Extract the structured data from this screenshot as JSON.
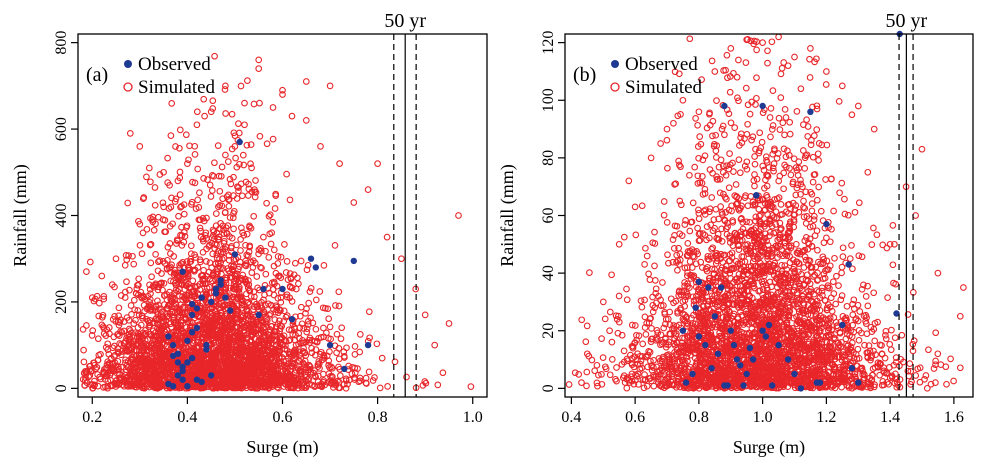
{
  "chart_data": [
    {
      "type": "scatter",
      "panel_label": "(a)",
      "xlabel": "Surge (m)",
      "ylabel": "Rainfall (mm)",
      "xlim": [
        0.17,
        1.03
      ],
      "ylim": [
        -20,
        820
      ],
      "xticks": [
        0.2,
        0.4,
        0.6,
        0.8,
        1.0
      ],
      "xtick_labels": [
        "0.2",
        "0.4",
        "0.6",
        "0.8",
        "1.0"
      ],
      "yticks": [
        0,
        200,
        400,
        600,
        800
      ],
      "ytick_labels": [
        "0",
        "200",
        "400",
        "600",
        "800"
      ],
      "legend": {
        "position": "top-left",
        "entries": [
          "Observed",
          "Simulated"
        ]
      },
      "return_period": {
        "label": "50 yr",
        "x": 0.858,
        "x_lower": 0.834,
        "x_upper": 0.881
      },
      "colors": {
        "observed": "#1f3a93",
        "simulated": "#e8262a"
      },
      "simulated_summary": {
        "x_mode": 0.45,
        "x_sd": 0.11,
        "y_median": 140,
        "y_max": 770,
        "approx_count": 9000
      },
      "series": [
        {
          "name": "Observed",
          "x": [
            0.36,
            0.37,
            0.38,
            0.38,
            0.39,
            0.39,
            0.4,
            0.4,
            0.41,
            0.41,
            0.42,
            0.43,
            0.44,
            0.45,
            0.46,
            0.47,
            0.48,
            0.49,
            0.5,
            0.36,
            0.37,
            0.38,
            0.39,
            0.4,
            0.41,
            0.42,
            0.43,
            0.44,
            0.45,
            0.46,
            0.47,
            0.55,
            0.56,
            0.6,
            0.62,
            0.66,
            0.67,
            0.7,
            0.75,
            0.73,
            0.78,
            0.51,
            0.39,
            0.41,
            0.42,
            0.37
          ],
          "y": [
            120,
            100,
            80,
            60,
            40,
            20,
            5,
            110,
            130,
            170,
            140,
            210,
            90,
            30,
            230,
            250,
            210,
            180,
            310,
            10,
            5,
            30,
            50,
            60,
            70,
            20,
            15,
            100,
            200,
            220,
            240,
            170,
            230,
            230,
            160,
            300,
            280,
            100,
            295,
            45,
            100,
            570,
            270,
            195,
            185,
            75
          ]
        },
        {
          "name": "Simulated",
          "x": [
            0.28,
            0.3,
            0.32,
            0.35,
            0.38,
            0.4,
            0.42,
            0.45,
            0.48,
            0.5,
            0.52,
            0.55,
            0.58,
            0.6,
            0.62,
            0.65,
            0.68,
            0.7,
            0.72,
            0.75,
            0.78,
            0.8,
            0.82,
            0.85,
            0.88,
            0.9,
            0.92,
            0.95,
            0.97,
            0.55,
            0.52,
            0.6,
            0.48,
            0.65,
            0.35,
            0.3,
            0.25,
            0.22,
            0.2
          ],
          "y": [
            590,
            560,
            510,
            500,
            480,
            520,
            610,
            640,
            700,
            560,
            660,
            760,
            650,
            690,
            630,
            710,
            560,
            700,
            520,
            430,
            460,
            520,
            350,
            300,
            230,
            170,
            100,
            150,
            400,
            740,
            610,
            680,
            540,
            620,
            420,
            380,
            300,
            260,
            210
          ]
        }
      ]
    },
    {
      "type": "scatter",
      "panel_label": "(b)",
      "xlabel": "Surge (m)",
      "ylabel": "Rainfall (mm)",
      "xlim": [
        0.38,
        1.66
      ],
      "ylim": [
        -3,
        123
      ],
      "xticks": [
        0.4,
        0.6,
        0.8,
        1.0,
        1.2,
        1.4,
        1.6
      ],
      "xtick_labels": [
        "0.4",
        "0.6",
        "0.8",
        "1.0",
        "1.2",
        "1.4",
        "1.6"
      ],
      "yticks": [
        0,
        20,
        40,
        60,
        80,
        100,
        120
      ],
      "ytick_labels": [
        "0",
        "20",
        "40",
        "60",
        "80",
        "100",
        "120"
      ],
      "legend": {
        "position": "top-left",
        "entries": [
          "Observed",
          "Simulated"
        ]
      },
      "return_period": {
        "label": "50 yr",
        "x": 1.451,
        "x_lower": 1.428,
        "x_upper": 1.472
      },
      "colors": {
        "observed": "#1f3a93",
        "simulated": "#e8262a"
      },
      "simulated_summary": {
        "x_mode": 0.98,
        "x_sd": 0.17,
        "y_median": 30,
        "y_max": 123,
        "approx_count": 9000
      },
      "series": [
        {
          "name": "Observed",
          "x": [
            0.75,
            0.78,
            0.8,
            0.82,
            0.85,
            0.88,
            0.9,
            0.92,
            0.95,
            0.98,
            1.0,
            1.02,
            1.05,
            1.08,
            1.1,
            1.15,
            1.18,
            1.2,
            1.25,
            1.27,
            1.28,
            1.3,
            1.42,
            0.8,
            0.83,
            0.86,
            0.89,
            0.93,
            0.96,
            1.0,
            1.03,
            0.76,
            0.79,
            0.84,
            0.87,
            0.91,
            0.94,
            0.97,
            1.01,
            1.12,
            1.17,
            0.98,
            0.88,
            1.43
          ],
          "y": [
            20,
            5,
            37,
            15,
            25,
            98,
            20,
            10,
            5,
            67,
            98,
            22,
            15,
            10,
            5,
            96,
            2,
            57,
            22,
            43,
            7,
            2,
            26,
            18,
            35,
            12,
            1,
            8,
            14,
            20,
            1,
            2,
            28,
            7,
            35,
            15,
            1,
            10,
            18,
            0,
            2,
            67,
            1,
            123
          ]
        },
        {
          "name": "Simulated",
          "x": [
            0.45,
            0.5,
            0.55,
            0.58,
            0.6,
            0.65,
            0.7,
            0.75,
            0.8,
            0.85,
            0.9,
            0.95,
            1.0,
            1.05,
            1.1,
            1.15,
            1.2,
            1.25,
            1.3,
            1.35,
            1.4,
            1.45,
            1.5,
            1.55,
            1.62,
            1.63,
            0.88,
            0.92,
            1.08,
            1.12,
            0.72,
            0.68,
            1.28,
            1.33,
            1.48,
            0.52,
            0.48
          ],
          "y": [
            12,
            30,
            50,
            72,
            63,
            80,
            90,
            100,
            96,
            110,
            118,
            121,
            120,
            122,
            115,
            118,
            110,
            105,
            98,
            90,
            50,
            70,
            83,
            40,
            25,
            35,
            88,
            108,
            112,
            104,
            92,
            85,
            95,
            75,
            60,
            20,
            8
          ]
        }
      ]
    }
  ]
}
